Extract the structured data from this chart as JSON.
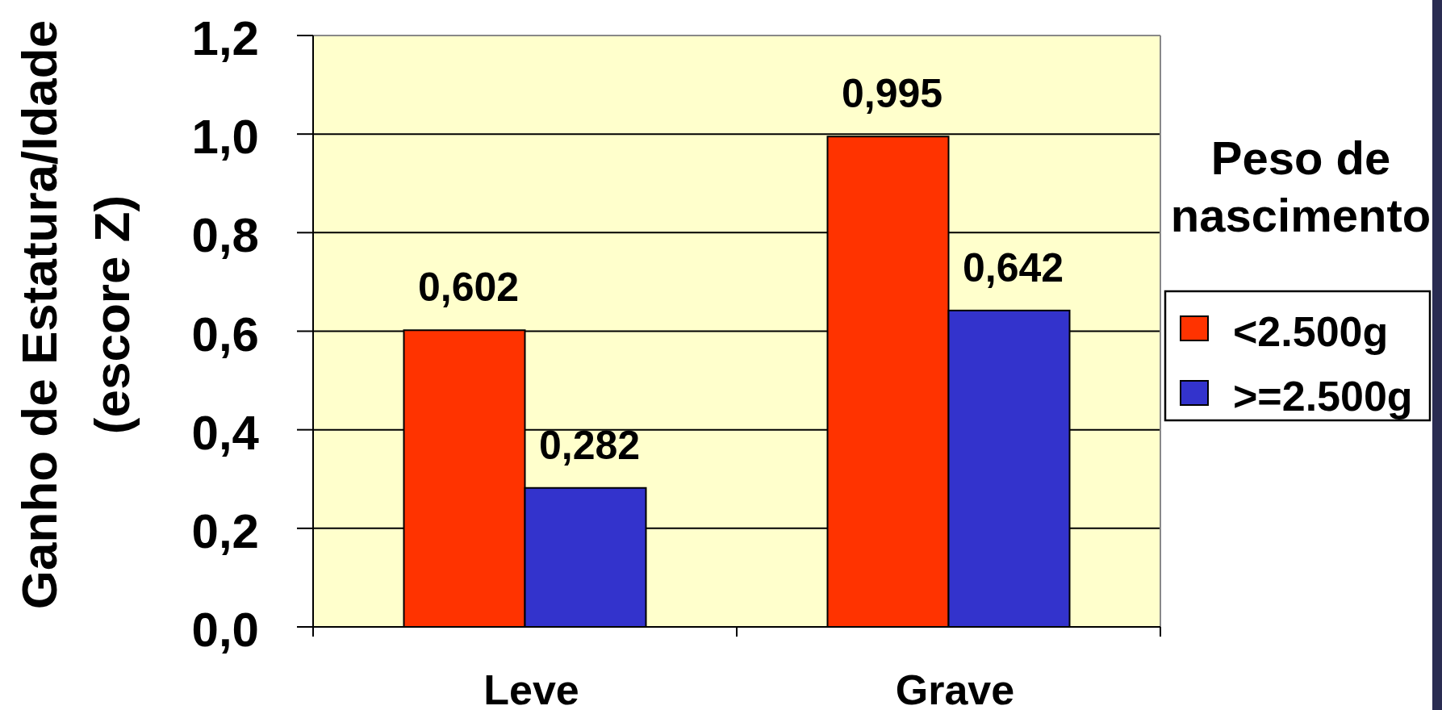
{
  "chart_data": {
    "type": "bar",
    "categories": [
      "Leve",
      "Grave"
    ],
    "series": [
      {
        "name": "<2.500g",
        "color": "#ff3300",
        "values": [
          0.602,
          0.995
        ],
        "value_labels": [
          "0,602",
          "0,995"
        ]
      },
      {
        "name": ">=2.500g",
        "color": "#3333cc",
        "values": [
          0.282,
          0.642
        ],
        "value_labels": [
          "0,282",
          "0,642"
        ]
      }
    ],
    "ylabel": "Ganho de Estatura/Idade (escore Z)",
    "legend_title": "Peso de nascimento",
    "ylim": [
      0,
      1.2
    ],
    "yticks": [
      {
        "value": 0,
        "label": "0,0"
      },
      {
        "value": 0.2,
        "label": "0,2"
      },
      {
        "value": 0.4,
        "label": "0,4"
      },
      {
        "value": 0.6,
        "label": "0,6"
      },
      {
        "value": 0.8,
        "label": "0,8"
      },
      {
        "value": 1,
        "label": "1,0"
      },
      {
        "value": 1.2,
        "label": "1,2"
      }
    ],
    "grid": "y",
    "legend": "right"
  }
}
